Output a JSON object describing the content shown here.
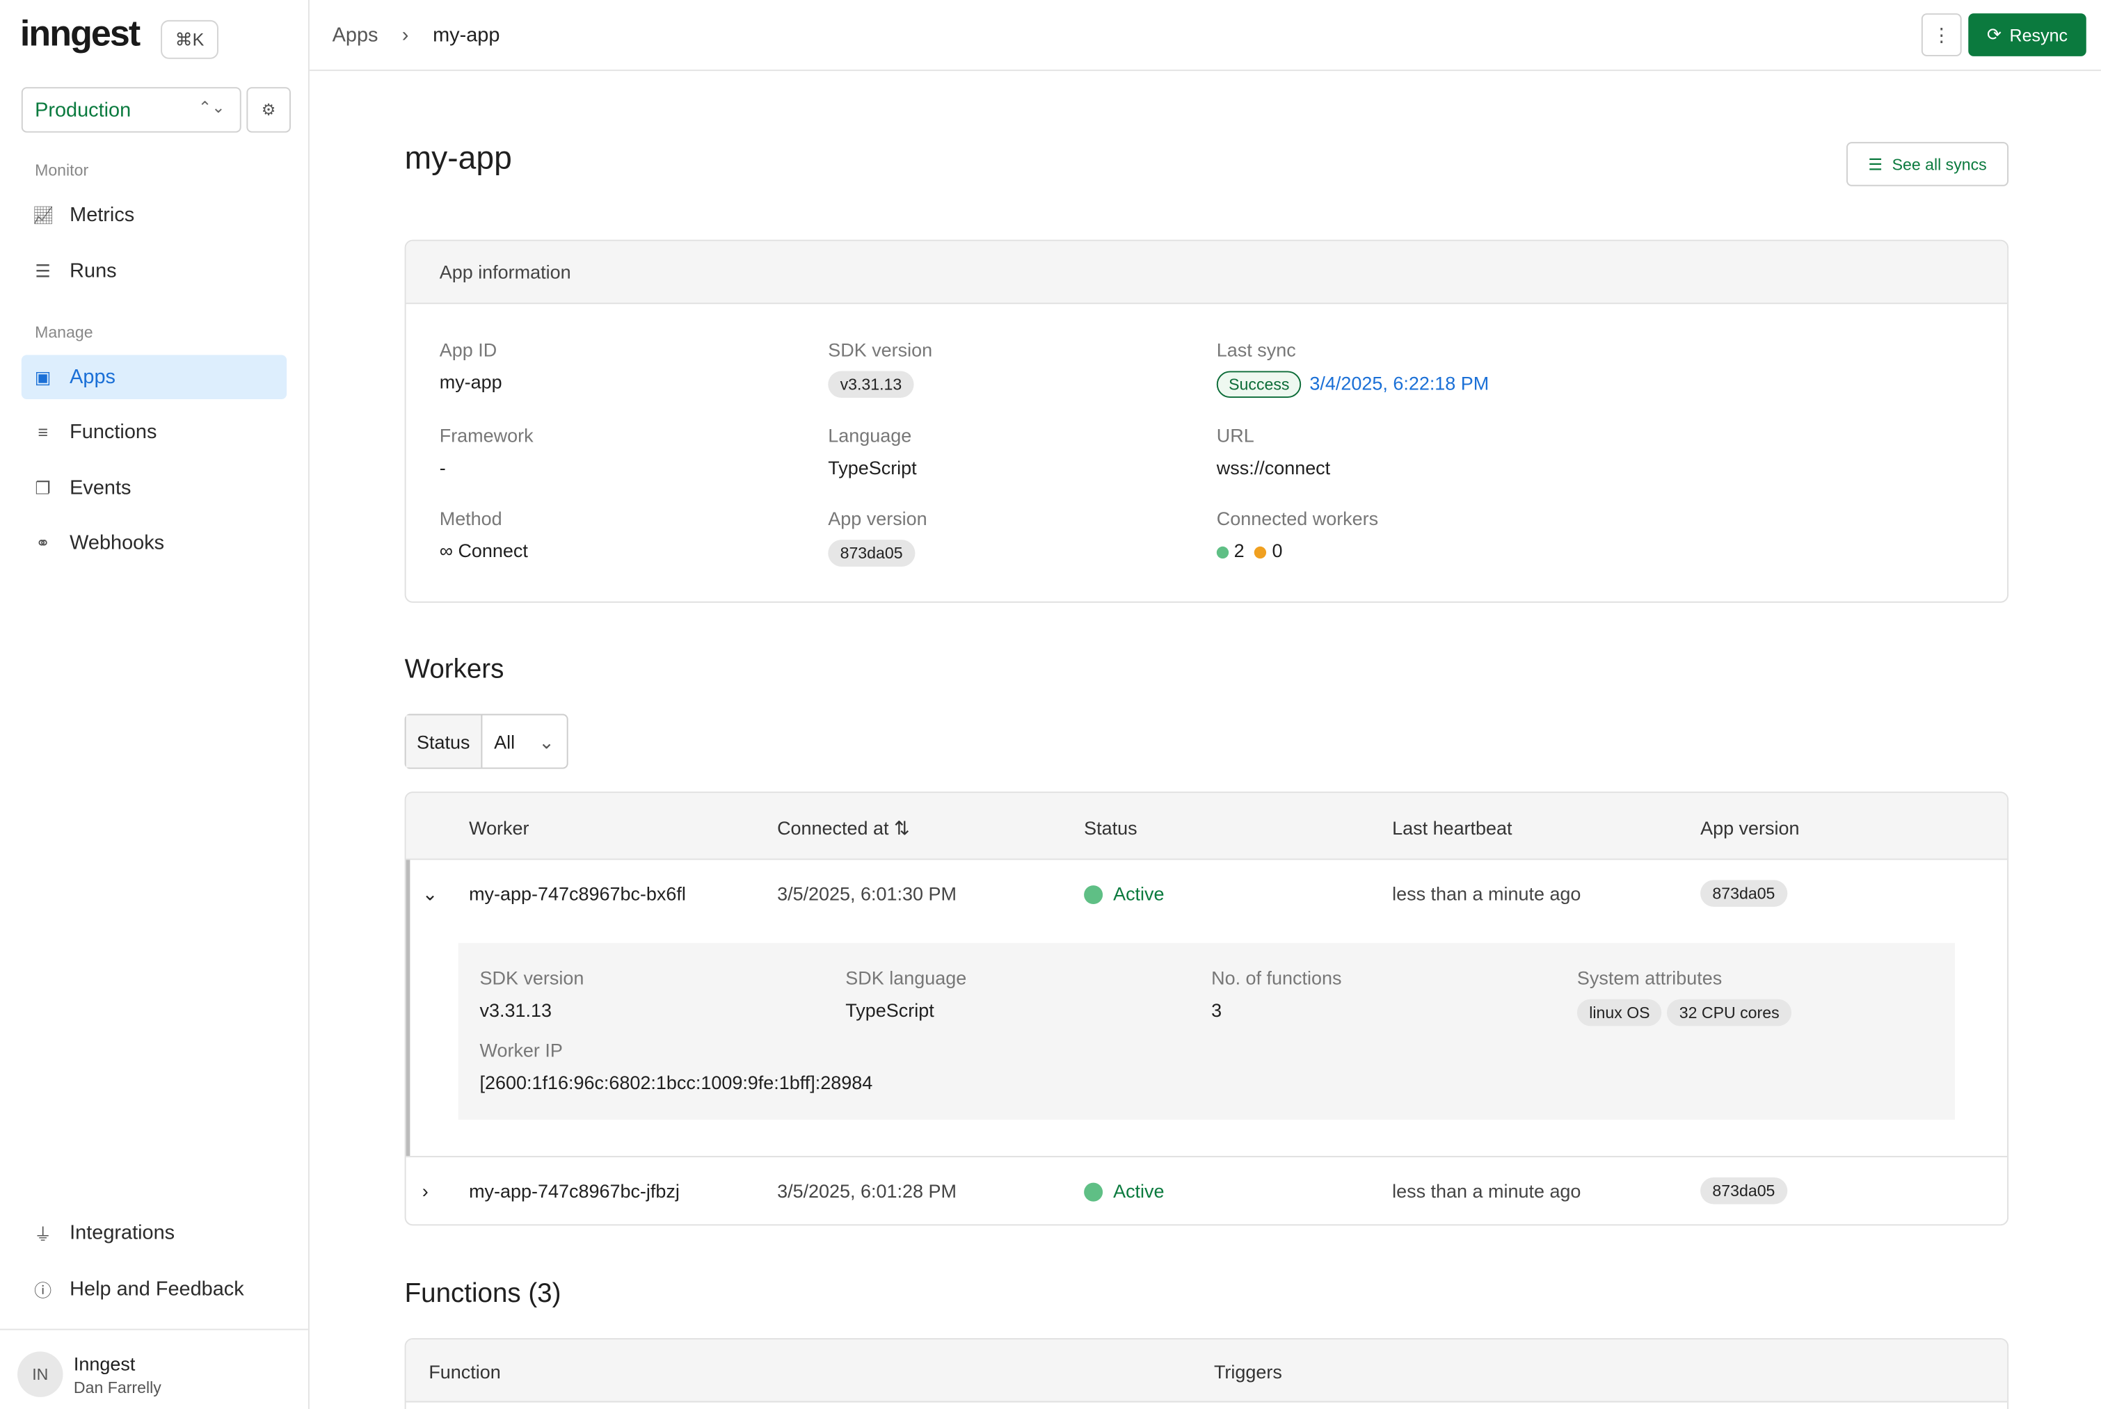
{
  "sidebar": {
    "logo": "inngest",
    "shortcut": "⌘K",
    "environment": "Production",
    "sections": {
      "monitor": "Monitor",
      "manage": "Manage"
    },
    "items": [
      {
        "label": "Metrics",
        "icon": "chart-line-icon"
      },
      {
        "label": "Runs",
        "icon": "list-icon"
      },
      {
        "label": "Apps",
        "icon": "apps-grid-icon",
        "active": true
      },
      {
        "label": "Functions",
        "icon": "functions-list-icon"
      },
      {
        "label": "Events",
        "icon": "events-icon"
      },
      {
        "label": "Webhooks",
        "icon": "webhook-icon"
      }
    ],
    "bottom": [
      {
        "label": "Integrations",
        "icon": "plug-icon"
      },
      {
        "label": "Help and Feedback",
        "icon": "help-circle-icon"
      }
    ],
    "user": {
      "initials": "IN",
      "org": "Inngest",
      "name": "Dan Farrelly"
    }
  },
  "breadcrumb": [
    "Apps",
    "my-app"
  ],
  "header": {
    "resync": "Resync",
    "see_all_syncs": "See all syncs",
    "title": "my-app"
  },
  "app_info": {
    "title": "App information",
    "app_id": {
      "label": "App ID",
      "value": "my-app"
    },
    "sdk_version": {
      "label": "SDK version",
      "value": "v3.31.13"
    },
    "last_sync": {
      "label": "Last sync",
      "status": "Success",
      "time": "3/4/2025, 6:22:18 PM"
    },
    "framework": {
      "label": "Framework",
      "value": "-"
    },
    "language": {
      "label": "Language",
      "value": "TypeScript"
    },
    "url": {
      "label": "URL",
      "value": "wss://connect"
    },
    "method": {
      "label": "Method",
      "value": "Connect"
    },
    "app_version": {
      "label": "App version",
      "value": "873da05"
    },
    "connected_workers": {
      "label": "Connected workers",
      "active": "2",
      "inactive": "0"
    }
  },
  "workers": {
    "title": "Workers",
    "filter_label": "Status",
    "filter_value": "All",
    "columns": [
      "Worker",
      "Connected at",
      "Status",
      "Last heartbeat",
      "App version"
    ],
    "rows": [
      {
        "name": "my-app-747c8967bc-bx6fl",
        "connected": "3/5/2025, 6:01:30 PM",
        "status": "Active",
        "heartbeat": "less than a minute ago",
        "version": "873da05",
        "expanded": true
      },
      {
        "name": "my-app-747c8967bc-jfbzj",
        "connected": "3/5/2025, 6:01:28 PM",
        "status": "Active",
        "heartbeat": "less than a minute ago",
        "version": "873da05",
        "expanded": false
      }
    ],
    "detail": {
      "sdk_version_label": "SDK version",
      "sdk_version": "v3.31.13",
      "sdk_language_label": "SDK language",
      "sdk_language": "TypeScript",
      "functions_label": "No. of functions",
      "functions": "3",
      "sys_label": "System attributes",
      "sys": [
        "linux OS",
        "32 CPU cores"
      ],
      "ip_label": "Worker IP",
      "ip": "[2600:1f16:96c:6802:1bcc:1009:9fe:1bff]:28984"
    }
  },
  "functions": {
    "title": "Functions (3)",
    "columns": [
      "Function",
      "Triggers"
    ]
  },
  "colors": {
    "brand": "#0b7a3e",
    "link": "#1a6fd6",
    "active": "#5fbf85",
    "inactive": "#f0a020"
  }
}
